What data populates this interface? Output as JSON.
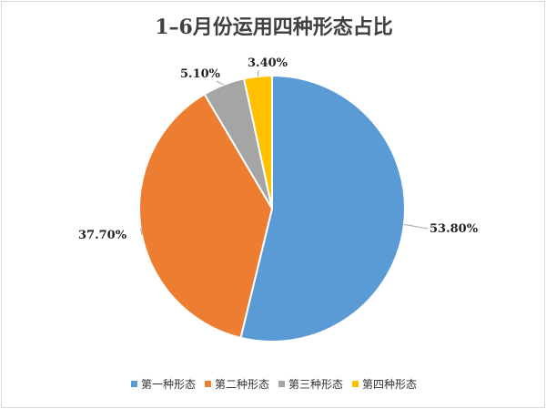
{
  "chart_data": {
    "type": "pie",
    "title": "1–6月份运用四种形态占比",
    "categories": [
      "第一种形态",
      "第二种形态",
      "第三种形态",
      "第四种形态"
    ],
    "values": [
      53.8,
      37.7,
      5.1,
      3.4
    ],
    "data_labels": [
      "53.80%",
      "37.70%",
      "5.10%",
      "3.40%"
    ],
    "colors": [
      "#5b9bd5",
      "#ed7d31",
      "#a5a5a5",
      "#ffc000"
    ],
    "legend_position": "bottom",
    "start_angle_deg": 0,
    "direction": "clockwise"
  }
}
